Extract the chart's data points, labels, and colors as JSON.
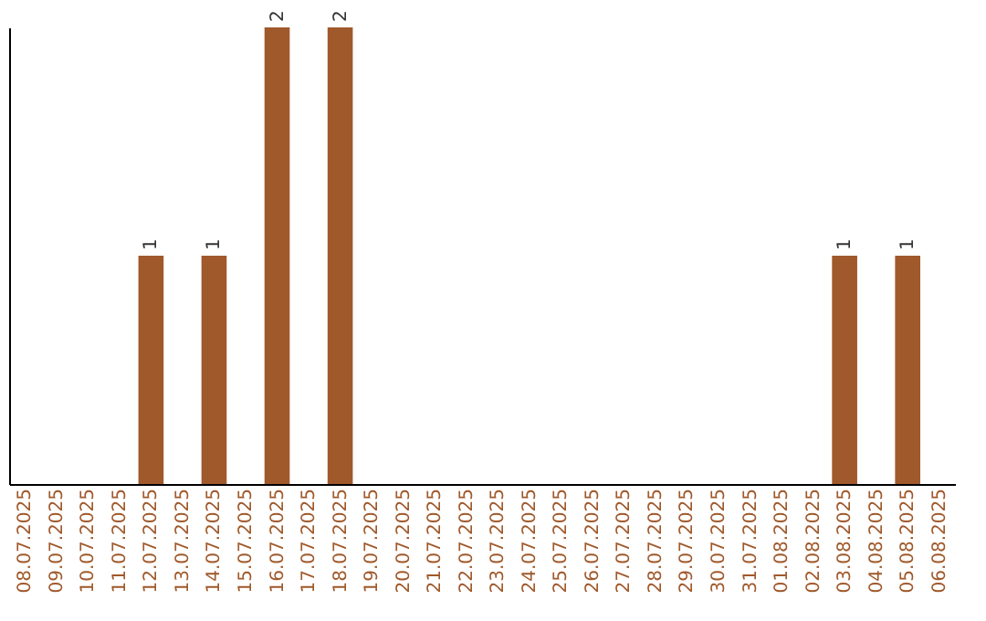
{
  "chart_data": {
    "type": "bar",
    "categories": [
      "08.07.2025",
      "09.07.2025",
      "10.07.2025",
      "11.07.2025",
      "12.07.2025",
      "13.07.2025",
      "14.07.2025",
      "15.07.2025",
      "16.07.2025",
      "17.07.2025",
      "18.07.2025",
      "19.07.2025",
      "20.07.2025",
      "21.07.2025",
      "22.07.2025",
      "23.07.2025",
      "24.07.2025",
      "25.07.2025",
      "26.07.2025",
      "27.07.2025",
      "28.07.2025",
      "29.07.2025",
      "30.07.2025",
      "31.07.2025",
      "01.08.2025",
      "02.08.2025",
      "03.08.2025",
      "04.08.2025",
      "05.08.2025",
      "06.08.2025"
    ],
    "values": [
      0,
      0,
      0,
      0,
      1,
      0,
      1,
      0,
      2,
      0,
      2,
      0,
      0,
      0,
      0,
      0,
      0,
      0,
      0,
      0,
      0,
      0,
      0,
      0,
      0,
      0,
      1,
      0,
      1,
      0
    ],
    "value_labels": [
      null,
      null,
      null,
      null,
      "1",
      null,
      "1",
      null,
      "2",
      null,
      "2",
      null,
      null,
      null,
      null,
      null,
      null,
      null,
      null,
      null,
      null,
      null,
      null,
      null,
      null,
      null,
      "1",
      null,
      "1",
      null
    ],
    "color": "#a0592b",
    "ylim": [
      0,
      2
    ],
    "tick_labels": "x"
  }
}
